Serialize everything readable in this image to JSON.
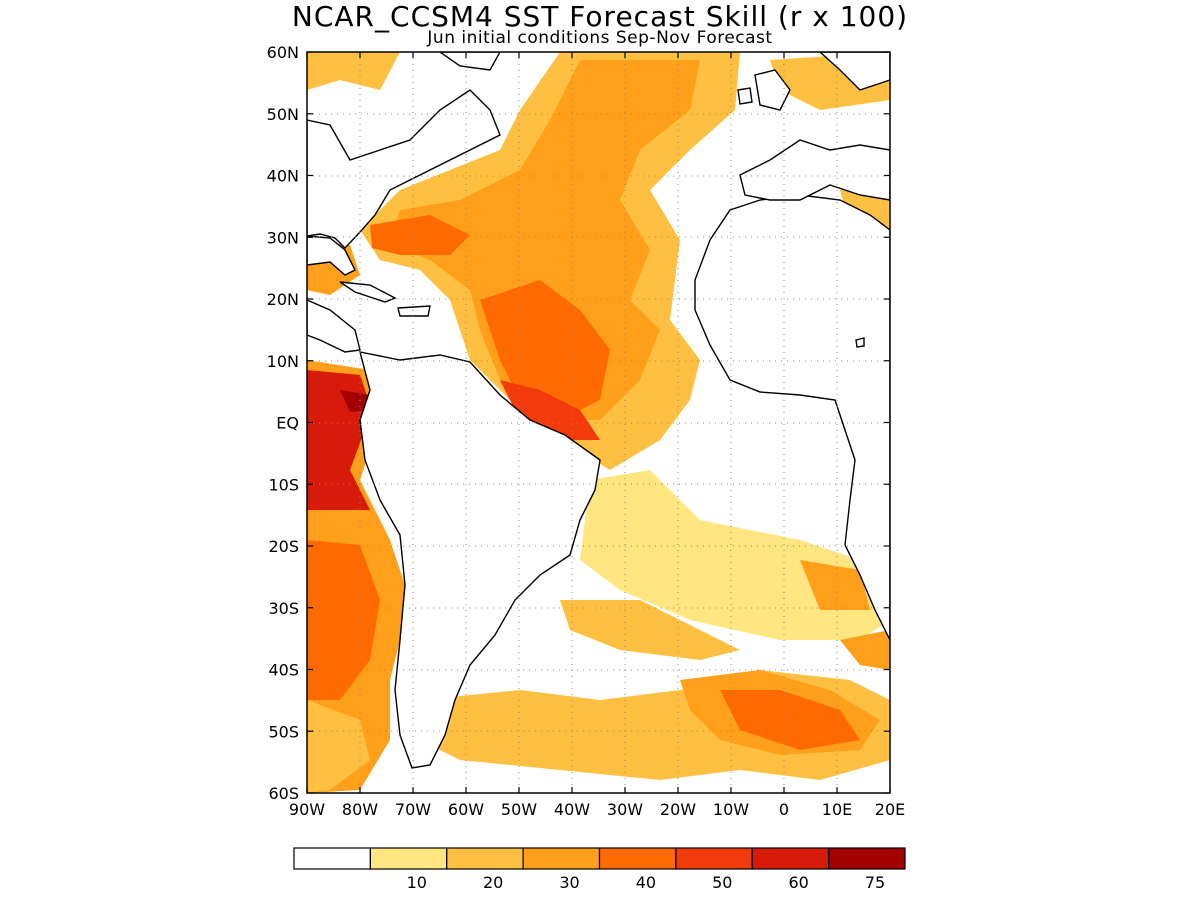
{
  "title": "NCAR_CCSM4 SST Forecast Skill (r x 100)",
  "subtitle": "Jun initial conditions  Sep-Nov Forecast",
  "map": {
    "lon_range": [
      -90,
      20
    ],
    "lat_range": [
      -60,
      60
    ],
    "lat_labels": [
      "60N",
      "50N",
      "40N",
      "30N",
      "20N",
      "10N",
      "EQ",
      "10S",
      "20S",
      "30S",
      "40S",
      "50S",
      "60S"
    ],
    "lon_labels": [
      "90W",
      "80W",
      "70W",
      "60W",
      "50W",
      "40W",
      "30W",
      "20W",
      "10W",
      "0",
      "10E",
      "20E"
    ],
    "gridlines": "dotted"
  },
  "legend": {
    "bins": [
      {
        "color": "#ffffff",
        "label": ""
      },
      {
        "color": "#ffe680",
        "label": "10"
      },
      {
        "color": "#ffbf40",
        "label": "20"
      },
      {
        "color": "#ff9f1a",
        "label": "30"
      },
      {
        "color": "#ff6a00",
        "label": "40"
      },
      {
        "color": "#f23a0a",
        "label": "50"
      },
      {
        "color": "#d81a0a",
        "label": "60"
      },
      {
        "color": "#a30000",
        "label": "75"
      }
    ]
  }
}
